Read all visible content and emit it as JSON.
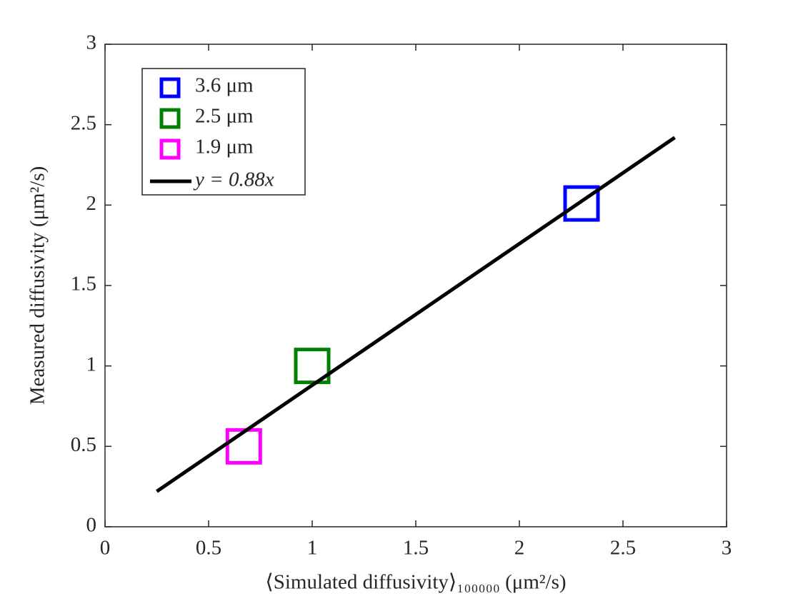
{
  "chart_data": {
    "type": "scatter",
    "xlabel": "⟨Simulated diffusivity⟩₁₀₀₀₀₀ (μm²/s)",
    "ylabel": "Measured diffusivity (μm²/s)",
    "xlim": [
      0,
      3
    ],
    "ylim": [
      0,
      3
    ],
    "xticks": [
      0,
      0.5,
      1,
      1.5,
      2,
      2.5,
      3
    ],
    "yticks": [
      0,
      0.5,
      1,
      1.5,
      2,
      2.5,
      3
    ],
    "legend": "upper left",
    "series": [
      {
        "name": "3.6 μm",
        "color": "#0000ff",
        "marker": "square",
        "x": [
          2.3
        ],
        "values": [
          2.01
        ]
      },
      {
        "name": "2.5 μm",
        "color": "#007f00",
        "marker": "square",
        "x": [
          1.0
        ],
        "values": [
          1.0
        ]
      },
      {
        "name": "1.9 μm",
        "color": "#ff00ff",
        "marker": "square",
        "x": [
          0.67
        ],
        "values": [
          0.5
        ]
      },
      {
        "name": "y = 0.88x",
        "color": "#000000",
        "type": "line",
        "x": [
          0.25,
          2.75
        ],
        "values": [
          0.22,
          2.42
        ]
      }
    ]
  }
}
